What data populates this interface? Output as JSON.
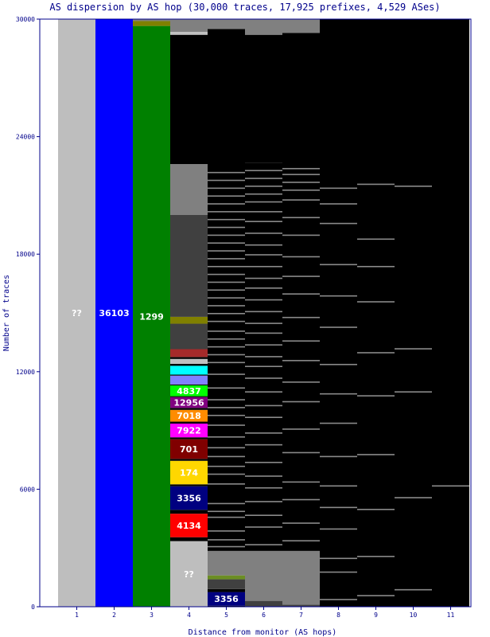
{
  "chart_data": {
    "type": "bar",
    "title": "AS dispersion by AS hop (30,000 traces, 17,925 prefixes, 4,529 ASes)",
    "xlabel": "Distance from monitor (AS hops)",
    "ylabel": "Number of traces",
    "ylim": [
      0,
      30000
    ],
    "yticks": [
      "0",
      "6000",
      "12000",
      "18000",
      "24000",
      "30000"
    ],
    "categories": [
      "1",
      "2",
      "3",
      "4",
      "5",
      "6",
      "7",
      "8",
      "9",
      "10",
      "11"
    ],
    "stacks": [
      {
        "hop": "1",
        "segments": [
          {
            "label": "??",
            "start": 0,
            "end": 30000,
            "color": "#bebebe",
            "text": "#ffffff"
          }
        ]
      },
      {
        "hop": "2",
        "segments": [
          {
            "label": "36103",
            "start": 0,
            "end": 30000,
            "color": "#0000ff",
            "text": "#ffffff"
          }
        ]
      },
      {
        "hop": "3",
        "segments": [
          {
            "label": "1299",
            "start": 0,
            "end": 29650,
            "color": "#008000",
            "text": "#ffffff"
          },
          {
            "label": "",
            "start": 29650,
            "end": 29900,
            "color": "#808000"
          },
          {
            "label": "",
            "start": 29900,
            "end": 30000,
            "color": "#7f7f7f"
          }
        ]
      },
      {
        "hop": "4",
        "segments": [
          {
            "label": "??",
            "start": 0,
            "end": 3350,
            "color": "#bebebe",
            "text": "#ffffff"
          },
          {
            "label": "",
            "start": 3350,
            "end": 3550,
            "color": "#000000"
          },
          {
            "label": "4134",
            "start": 3550,
            "end": 4750,
            "color": "#ff0000",
            "text": "#ffffff"
          },
          {
            "label": "",
            "start": 4750,
            "end": 4950,
            "color": "#000000"
          },
          {
            "label": "3356",
            "start": 4950,
            "end": 6150,
            "color": "#000080",
            "text": "#ffffff"
          },
          {
            "label": "",
            "start": 6150,
            "end": 6250,
            "color": "#000000"
          },
          {
            "label": "174",
            "start": 6250,
            "end": 7450,
            "color": "#ffd700",
            "text": "#ffffff"
          },
          {
            "label": "",
            "start": 7450,
            "end": 7550,
            "color": "#000000"
          },
          {
            "label": "701",
            "start": 7550,
            "end": 8550,
            "color": "#800000",
            "text": "#ffffff"
          },
          {
            "label": "",
            "start": 8550,
            "end": 8650,
            "color": "#000000"
          },
          {
            "label": "7922",
            "start": 8650,
            "end": 9350,
            "color": "#ff00ff",
            "text": "#ffffff"
          },
          {
            "label": "",
            "start": 9350,
            "end": 9450,
            "color": "#000000"
          },
          {
            "label": "7018",
            "start": 9450,
            "end": 10050,
            "color": "#ff8c00",
            "text": "#ffffff"
          },
          {
            "label": "",
            "start": 10050,
            "end": 10150,
            "color": "#000000"
          },
          {
            "label": "12956",
            "start": 10150,
            "end": 10700,
            "color": "#800080",
            "text": "#ffffff"
          },
          {
            "label": "",
            "start": 10700,
            "end": 10750,
            "color": "#000000"
          },
          {
            "label": "4837",
            "start": 10750,
            "end": 11300,
            "color": "#00ff00",
            "text": "#ffffff"
          },
          {
            "label": "",
            "start": 11300,
            "end": 11350,
            "color": "#000000"
          },
          {
            "label": "",
            "start": 11350,
            "end": 11800,
            "color": "#8080ff"
          },
          {
            "label": "",
            "start": 11800,
            "end": 11850,
            "color": "#000000"
          },
          {
            "label": "",
            "start": 11850,
            "end": 12300,
            "color": "#00ffff"
          },
          {
            "label": "",
            "start": 12300,
            "end": 12400,
            "color": "#000000"
          },
          {
            "label": "",
            "start": 12400,
            "end": 12650,
            "color": "#c0c0c0"
          },
          {
            "label": "",
            "start": 12650,
            "end": 12750,
            "color": "#000000"
          },
          {
            "label": "",
            "start": 12750,
            "end": 13150,
            "color": "#a52a2a"
          },
          {
            "label": "",
            "start": 13150,
            "end": 14450,
            "color": "#404040"
          },
          {
            "label": "",
            "start": 14450,
            "end": 14800,
            "color": "#808000"
          },
          {
            "label": "",
            "start": 14800,
            "end": 20000,
            "color": "#404040"
          },
          {
            "label": "",
            "start": 20000,
            "end": 22600,
            "color": "#808080"
          },
          {
            "label": "",
            "start": 22600,
            "end": 29200,
            "color": "#000000"
          },
          {
            "label": "",
            "start": 29200,
            "end": 29350,
            "color": "#c0c0c0"
          },
          {
            "label": "",
            "start": 29350,
            "end": 30000,
            "color": "#808080"
          }
        ]
      },
      {
        "hop": "5",
        "segments": [
          {
            "label": "",
            "start": 0,
            "end": 50,
            "color": "#000000"
          },
          {
            "label": "3356",
            "start": 50,
            "end": 750,
            "color": "#000080",
            "text": "#ffffff"
          },
          {
            "label": "",
            "start": 750,
            "end": 900,
            "color": "#000000"
          },
          {
            "label": "",
            "start": 900,
            "end": 1400,
            "color": "#404040"
          },
          {
            "label": "",
            "start": 1400,
            "end": 1600,
            "color": "#6b8e23"
          },
          {
            "label": "",
            "start": 1600,
            "end": 2850,
            "color": "#808080"
          },
          {
            "label": "",
            "start": 2850,
            "end": 29500,
            "color": "#000000"
          },
          {
            "label": "",
            "start": 29500,
            "end": 30000,
            "color": "#808080"
          }
        ]
      },
      {
        "hop": "6",
        "segments": [
          {
            "label": "",
            "start": 0,
            "end": 300,
            "color": "#404040"
          },
          {
            "label": "",
            "start": 300,
            "end": 2850,
            "color": "#808080"
          },
          {
            "label": "",
            "start": 2850,
            "end": 22650,
            "color": "#000000"
          },
          {
            "label": "",
            "start": 22650,
            "end": 29200,
            "color": "#000000"
          },
          {
            "label": "",
            "start": 29200,
            "end": 30000,
            "color": "#808080"
          }
        ]
      },
      {
        "hop": "7",
        "segments": [
          {
            "label": "",
            "start": 0,
            "end": 100,
            "color": "#404040"
          },
          {
            "label": "",
            "start": 100,
            "end": 2850,
            "color": "#808080"
          },
          {
            "label": "",
            "start": 2850,
            "end": 29300,
            "color": "#000000"
          },
          {
            "label": "",
            "start": 29300,
            "end": 30000,
            "color": "#808080"
          }
        ]
      },
      {
        "hop": "8",
        "segments": [
          {
            "label": "",
            "start": 0,
            "end": 30000,
            "color": "#000000"
          }
        ]
      },
      {
        "hop": "9",
        "segments": [
          {
            "label": "",
            "start": 0,
            "end": 30000,
            "color": "#000000"
          }
        ]
      },
      {
        "hop": "10",
        "segments": [
          {
            "label": "",
            "start": 0,
            "end": 30000,
            "color": "#000000"
          }
        ]
      },
      {
        "hop": "11",
        "segments": [
          {
            "label": "",
            "start": 0,
            "end": 30000,
            "color": "#000000"
          }
        ]
      }
    ],
    "gray_bands": [
      {
        "hop": "5",
        "values": [
          3100,
          3450,
          3900,
          4600,
          4900,
          5300,
          6300,
          6800,
          7200,
          7700,
          8150,
          8700,
          9300,
          9800,
          10200,
          10600,
          11200,
          11900,
          12500,
          12900,
          13300,
          13700,
          14100,
          14600,
          15000,
          15400,
          15800,
          16200,
          16600,
          17000,
          17400,
          17800,
          18200,
          18600,
          19000,
          19400,
          19800,
          20200,
          20600,
          21000,
          21400,
          21800,
          22200
        ]
      },
      {
        "hop": "6",
        "values": [
          3200,
          4100,
          4700,
          5400,
          6100,
          6700,
          7400,
          8300,
          8900,
          9700,
          10300,
          11000,
          11700,
          12300,
          12800,
          13400,
          14000,
          14500,
          15100,
          15700,
          16300,
          16800,
          17400,
          18000,
          18500,
          19100,
          19700,
          20200,
          20700,
          21100,
          21500,
          21900,
          22300
        ]
      },
      {
        "hop": "7",
        "values": [
          3400,
          4300,
          5500,
          6400,
          7900,
          9100,
          10500,
          11500,
          12600,
          13600,
          14800,
          16000,
          16900,
          17900,
          19000,
          19900,
          20800,
          21300,
          21700,
          22100,
          22400
        ]
      },
      {
        "hop": "8",
        "values": [
          400,
          1800,
          2500,
          4000,
          5100,
          6200,
          7700,
          9400,
          10900,
          12400,
          14300,
          15900,
          17500,
          19600,
          20600,
          21400
        ]
      },
      {
        "hop": "9",
        "values": [
          600,
          2600,
          5000,
          7800,
          10800,
          13000,
          15600,
          17400,
          18800,
          21600
        ]
      },
      {
        "hop": "10",
        "values": [
          900,
          5600,
          11000,
          13200,
          21500
        ]
      },
      {
        "hop": "11",
        "values": [
          6200
        ]
      }
    ],
    "legend": "none",
    "grid": false
  }
}
